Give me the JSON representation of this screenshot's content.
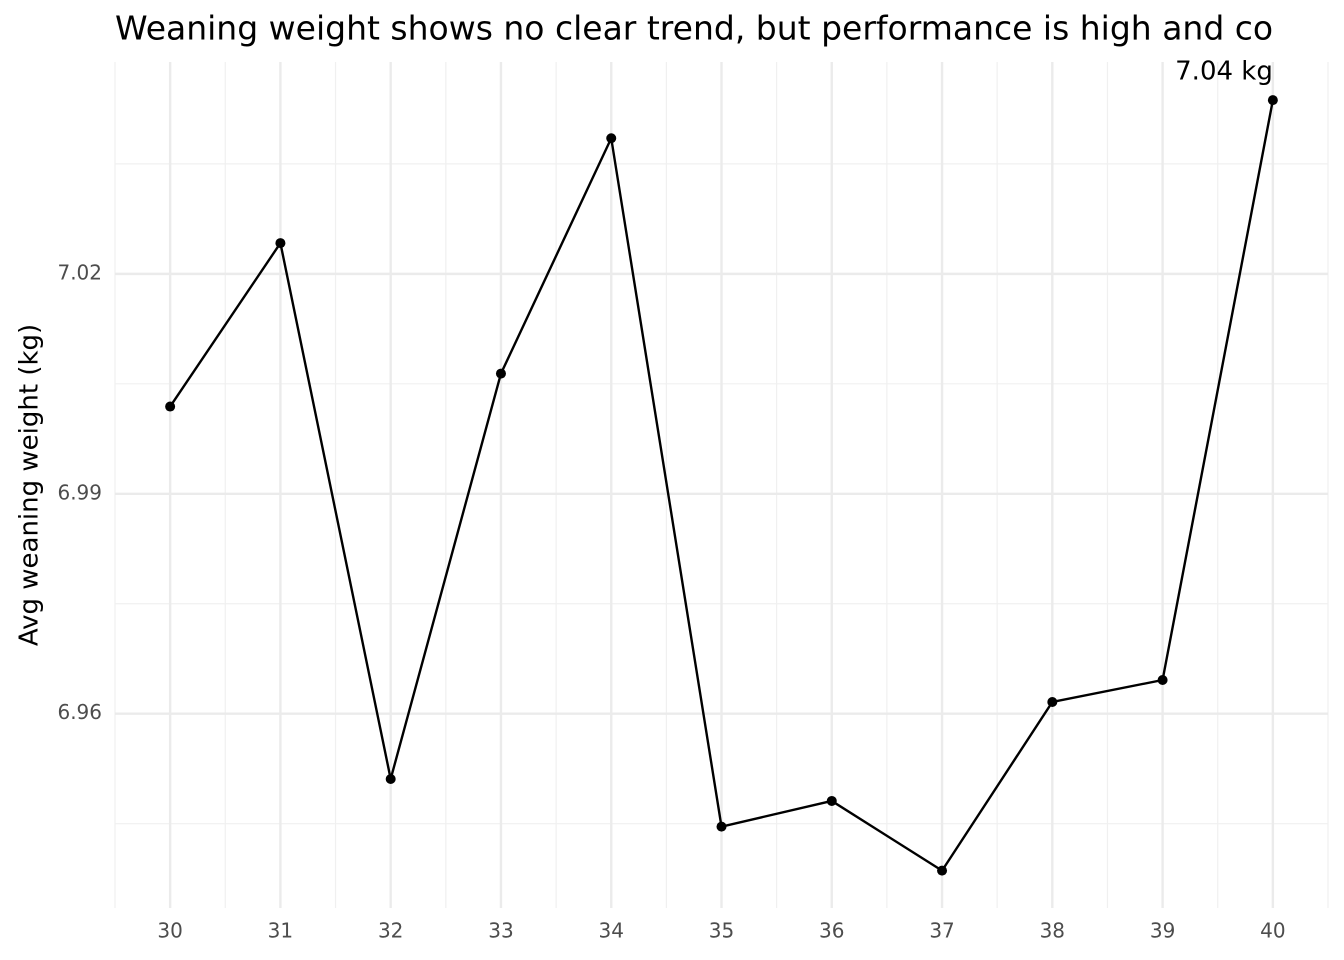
{
  "chart_data": {
    "type": "line",
    "title": "Weaning weight shows no clear trend, but performance is high and co",
    "y_label": "Avg weaning weight (kg)",
    "x": [
      30,
      31,
      32,
      33,
      34,
      35,
      36,
      37,
      38,
      39,
      40
    ],
    "values": [
      7.0019,
      7.0242,
      6.9511,
      7.0064,
      7.0385,
      6.9446,
      6.9481,
      6.9386,
      6.9616,
      6.9646,
      7.0437
    ],
    "value_labels": [
      null,
      null,
      null,
      null,
      null,
      null,
      null,
      null,
      null,
      null,
      "7.04 kg"
    ],
    "color": "#000000",
    "xlim": [
      29.5,
      40.5
    ],
    "xticks": [
      30,
      31,
      32,
      33,
      34,
      35,
      36,
      37,
      38,
      39,
      40
    ],
    "ylim": [
      6.9335,
      7.0489
    ],
    "yticks": [
      6.96,
      6.99,
      7.02
    ],
    "grid": true
  }
}
